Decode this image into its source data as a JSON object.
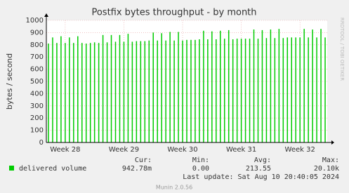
{
  "chart_data": {
    "type": "bar",
    "title": "Postfix bytes throughput - by month",
    "ylabel": "bytes / second",
    "watermark": "RRDTOOL / TOBI OETIKER",
    "categories": [
      null,
      null,
      null,
      null,
      "Week 28",
      null,
      null,
      null,
      null,
      null,
      null,
      null,
      null,
      null,
      null,
      null,
      null,
      null,
      "Week 29",
      null,
      null,
      null,
      null,
      null,
      null,
      null,
      null,
      null,
      null,
      null,
      null,
      null,
      "Week 30",
      null,
      null,
      null,
      null,
      null,
      null,
      null,
      null,
      null,
      null,
      null,
      null,
      null,
      "Week 31",
      null,
      null,
      null,
      null,
      null,
      null,
      null,
      null,
      null,
      null,
      null,
      null,
      null,
      "Week 32",
      null,
      null,
      null,
      null,
      null,
      null
    ],
    "series": [
      {
        "name": "delivered volume",
        "color": "#00cc00",
        "values": [
          810,
          860,
          815,
          870,
          815,
          860,
          815,
          870,
          815,
          810,
          815,
          820,
          815,
          880,
          820,
          880,
          825,
          880,
          825,
          890,
          825,
          830,
          830,
          830,
          835,
          900,
          835,
          895,
          835,
          905,
          835,
          905,
          835,
          840,
          840,
          840,
          845,
          915,
          845,
          910,
          845,
          915,
          850,
          920,
          845,
          850,
          850,
          850,
          850,
          925,
          850,
          920,
          855,
          925,
          855,
          930,
          855,
          860,
          860,
          860,
          860,
          930,
          860,
          925,
          860,
          930,
          860
        ]
      }
    ],
    "ylim": [
      0,
      1000
    ],
    "yticks": [
      0,
      100,
      200,
      300,
      400,
      500,
      600,
      700,
      800,
      900,
      1000
    ],
    "grid": true,
    "stats": [
      {
        "label": "Cur:",
        "value": "942.78m"
      },
      {
        "label": "Min:",
        "value": "0.00"
      },
      {
        "label": "Avg:",
        "value": "213.55"
      },
      {
        "label": "Max:",
        "value": "20.10k"
      }
    ],
    "last_update": "Last update: Sat Aug 10 20:40:05 2024",
    "credit": "Munin 2.0.56"
  }
}
